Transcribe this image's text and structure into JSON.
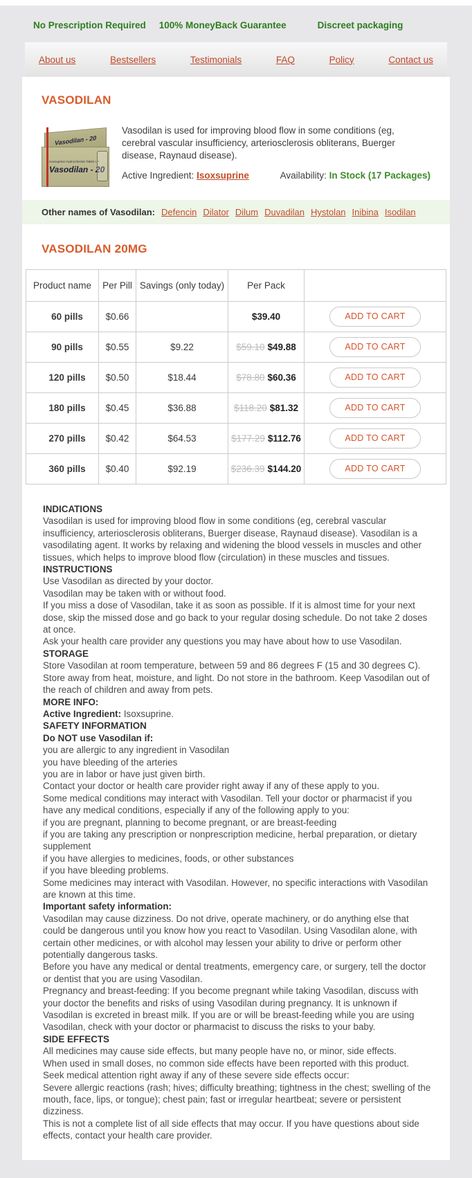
{
  "colors": {
    "accent_orange": "#d85b2b",
    "link_red": "#c24e27",
    "feature_green": "#2e7d1f",
    "stock_green": "#3d8b28",
    "band_green": "#eef5e9"
  },
  "topbar": {
    "items": [
      "No Prescription Required",
      "100% MoneyBack Guarantee",
      "Discreet packaging"
    ]
  },
  "nav": {
    "items": [
      "About us",
      "Bestsellers",
      "Testimonials",
      "FAQ",
      "Policy",
      "Contact us"
    ]
  },
  "product": {
    "title": "VASODILAN",
    "description": "Vasodilan is used for improving blood flow in some conditions (eg, cerebral vascular insufficiency, arteriosclerosis obliterans, Buerger disease, Raynaud disease).",
    "active_ingredient_label": "Active Ingredient:",
    "active_ingredient": "Isoxsuprine",
    "availability_label": "Availability:",
    "availability": "In Stock (17 Packages)",
    "box": {
      "brand": "Vasodilan - 20",
      "caption": "Isoxsuprine Hydrochloride Tablet I.P."
    },
    "other_names_label": "Other names of Vasodilan:",
    "other_names": [
      "Defencin",
      "Dilator",
      "Dilum",
      "Duvadilan",
      "Hystolan",
      "Inibina",
      "Isodilan"
    ]
  },
  "pricing": {
    "heading": "VASODILAN 20MG",
    "columns": [
      "Product name",
      "Per Pill",
      "Savings (only today)",
      "Per Pack",
      ""
    ],
    "button_label": "ADD TO CART",
    "rows": [
      {
        "name": "60 pills",
        "per_pill": "$0.66",
        "savings": "",
        "old_price": "",
        "per_pack": "$39.40"
      },
      {
        "name": "90 pills",
        "per_pill": "$0.55",
        "savings": "$9.22",
        "old_price": "$59.10",
        "per_pack": "$49.88"
      },
      {
        "name": "120 pills",
        "per_pill": "$0.50",
        "savings": "$18.44",
        "old_price": "$78.80",
        "per_pack": "$60.36"
      },
      {
        "name": "180 pills",
        "per_pill": "$0.45",
        "savings": "$36.88",
        "old_price": "$118.20",
        "per_pack": "$81.32"
      },
      {
        "name": "270 pills",
        "per_pill": "$0.42",
        "savings": "$64.53",
        "old_price": "$177.29",
        "per_pack": "$112.76"
      },
      {
        "name": "360 pills",
        "per_pill": "$0.40",
        "savings": "$92.19",
        "old_price": "$236.39",
        "per_pack": "$144.20"
      }
    ]
  },
  "info": {
    "lines": [
      {
        "b": "INDICATIONS",
        "t": ""
      },
      {
        "b": "",
        "t": "Vasodilan is used for improving blood flow in some conditions (eg, cerebral vascular insufficiency, arteriosclerosis obliterans, Buerger disease, Raynaud disease). Vasodilan is a vasodilating agent. It works by relaxing and widening the blood vessels in muscles and other tissues, which helps to improve blood flow (circulation) in these muscles and tissues."
      },
      {
        "b": "INSTRUCTIONS",
        "t": ""
      },
      {
        "b": "",
        "t": "Use Vasodilan as directed by your doctor."
      },
      {
        "b": "",
        "t": "Vasodilan may be taken with or without food."
      },
      {
        "b": "",
        "t": "If you miss a dose of Vasodilan, take it as soon as possible. If it is almost time for your next dose, skip the missed dose and go back to your regular dosing schedule. Do not take 2 doses at once."
      },
      {
        "b": "",
        "t": "Ask your health care provider any questions you may have about how to use Vasodilan."
      },
      {
        "b": "STORAGE",
        "t": ""
      },
      {
        "b": "",
        "t": "Store Vasodilan at room temperature, between 59 and 86 degrees F (15 and 30 degrees C). Store away from heat, moisture, and light. Do not store in the bathroom. Keep Vasodilan out of the reach of children and away from pets."
      },
      {
        "b": "MORE INFO:",
        "t": ""
      },
      {
        "b": "Active Ingredient:",
        "t": " Isoxsuprine."
      },
      {
        "b": "SAFETY INFORMATION",
        "t": ""
      },
      {
        "b": "Do NOT use Vasodilan if:",
        "t": ""
      },
      {
        "b": "",
        "t": "you are allergic to any ingredient in Vasodilan"
      },
      {
        "b": "",
        "t": "you have bleeding of the arteries"
      },
      {
        "b": "",
        "t": "you are in labor or have just given birth."
      },
      {
        "b": "",
        "t": "Contact your doctor or health care provider right away if any of these apply to you."
      },
      {
        "b": "",
        "t": "Some medical conditions may interact with Vasodilan. Tell your doctor or pharmacist if you have any medical conditions, especially if any of the following apply to you:"
      },
      {
        "b": "",
        "t": "if you are pregnant, planning to become pregnant, or are breast-feeding"
      },
      {
        "b": "",
        "t": "if you are taking any prescription or nonprescription medicine, herbal preparation, or dietary supplement"
      },
      {
        "b": "",
        "t": "if you have allergies to medicines, foods, or other substances"
      },
      {
        "b": "",
        "t": "if you have bleeding problems."
      },
      {
        "b": "",
        "t": "Some medicines may interact with Vasodilan. However, no specific interactions with Vasodilan are known at this time."
      },
      {
        "b": "Important safety information:",
        "t": ""
      },
      {
        "b": "",
        "t": "Vasodilan may cause dizziness. Do not drive, operate machinery, or do anything else that could be dangerous until you know how you react to Vasodilan. Using Vasodilan alone, with certain other medicines, or with alcohol may lessen your ability to drive or perform other potentially dangerous tasks."
      },
      {
        "b": "",
        "t": "Before you have any medical or dental treatments, emergency care, or surgery, tell the doctor or dentist that you are using Vasodilan."
      },
      {
        "b": "",
        "t": "Pregnancy and breast-feeding: If you become pregnant while taking Vasodilan, discuss with your doctor the benefits and risks of using Vasodilan during pregnancy. It is unknown if Vasodilan is excreted in breast milk. If you are or will be breast-feeding while you are using Vasodilan, check with your doctor or pharmacist to discuss the risks to your baby."
      },
      {
        "b": "SIDE EFFECTS",
        "t": ""
      },
      {
        "b": "",
        "t": "All medicines may cause side effects, but many people have no, or minor, side effects."
      },
      {
        "b": "",
        "t": "When used in small doses, no common side effects have been reported with this product."
      },
      {
        "b": "",
        "t": "Seek medical attention right away if any of these severe side effects occur:"
      },
      {
        "b": "",
        "t": "Severe allergic reactions (rash; hives; difficulty breathing; tightness in the chest; swelling of the mouth, face, lips, or tongue); chest pain; fast or irregular heartbeat; severe or persistent dizziness."
      },
      {
        "b": "",
        "t": "This is not a complete list of all side effects that may occur. If you have questions about side effects, contact your health care provider."
      }
    ]
  }
}
